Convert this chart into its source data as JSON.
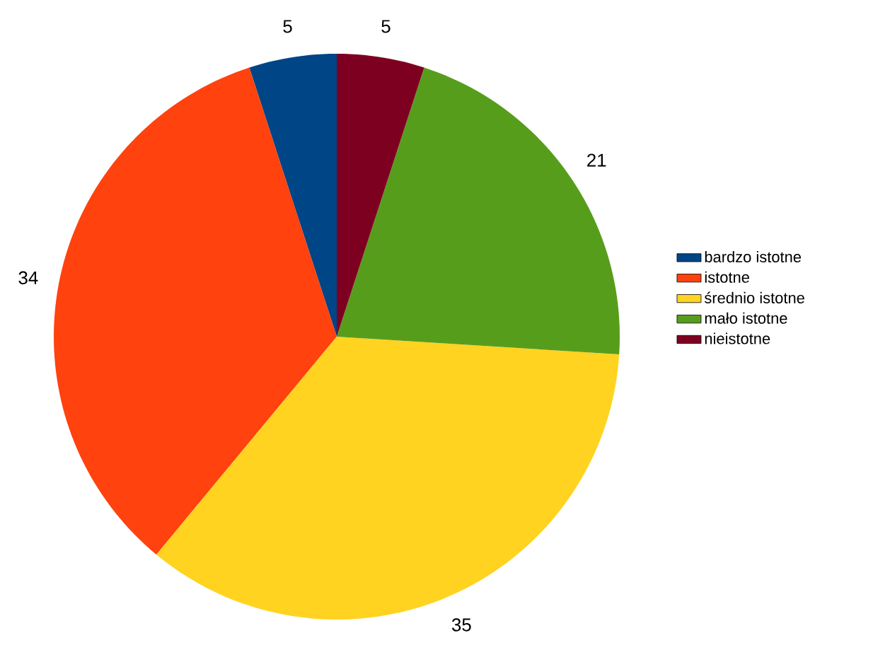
{
  "chart_data": {
    "type": "pie",
    "categories": [
      "bardzo istotne",
      "istotne",
      "średnio istotne",
      "mało istotne",
      "nieistotne"
    ],
    "values": [
      5,
      34,
      35,
      21,
      5
    ],
    "colors": [
      "#004586",
      "#ff420e",
      "#ffd320",
      "#579d1c",
      "#7e0021"
    ],
    "data_labels": true,
    "legend": "right"
  }
}
